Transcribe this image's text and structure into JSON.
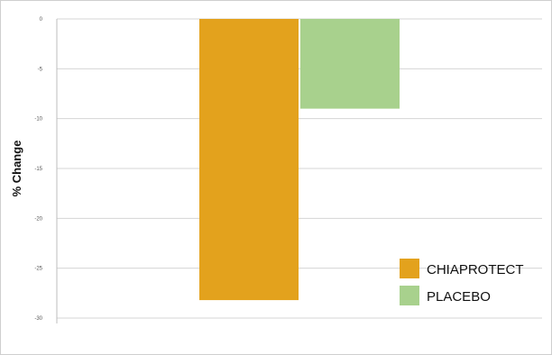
{
  "chart_data": {
    "type": "bar",
    "categories": [
      ""
    ],
    "series": [
      {
        "name": "CHIAPROTECT",
        "values": [
          -28.2
        ],
        "color": "#e3a21d"
      },
      {
        "name": "PLACEBO",
        "values": [
          -9.0
        ],
        "color": "#a8d18d"
      }
    ],
    "title": "",
    "xlabel": "",
    "ylabel": "% Change",
    "ylim": [
      -30,
      0
    ],
    "yticks": [
      0,
      -5,
      -10,
      -15,
      -20,
      -25,
      -30
    ],
    "ytick_labels": [
      "0",
      "-5",
      "-10",
      "-15",
      "-20",
      "-25",
      "-30"
    ],
    "grid": true,
    "legend_position": "bottom-right"
  }
}
